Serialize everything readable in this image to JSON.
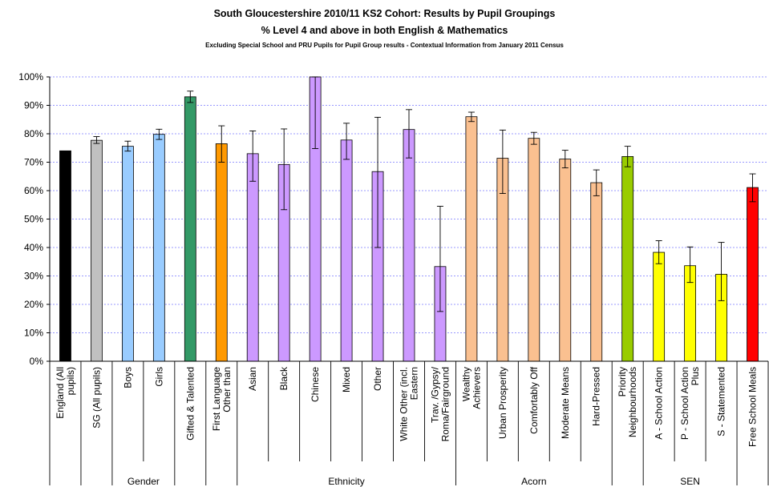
{
  "chart_data": {
    "type": "bar",
    "title": "South Gloucestershire 2010/11 KS2 Cohort: Results by Pupil Groupings",
    "subtitle": "% Level 4 and above in both English & Mathematics",
    "note": "Excluding Special School and PRU Pupils for Pupil Group results - Contextual Information from January 2011 Census",
    "ylim": [
      0,
      100
    ],
    "yticks": [
      "0%",
      "10%",
      "20%",
      "30%",
      "40%",
      "50%",
      "60%",
      "70%",
      "80%",
      "90%",
      "100%"
    ],
    "grid": true,
    "bars": [
      {
        "label": "England (All pupils)",
        "value": 74,
        "error": null,
        "color": "#000000"
      },
      {
        "label": "SG (All pupils)",
        "value": 77.7,
        "error": [
          76.6,
          79.0
        ],
        "color": "#c0c0c0"
      },
      {
        "label": "Boys",
        "value": 75.6,
        "error": [
          73.9,
          77.4
        ],
        "color": "#99ccff"
      },
      {
        "label": "Girls",
        "value": 79.8,
        "error": [
          78.0,
          81.6
        ],
        "color": "#99ccff"
      },
      {
        "label": "Gifted & Talented",
        "value": 93.0,
        "error": [
          91.0,
          95.0
        ],
        "color": "#339966"
      },
      {
        "label": "First Language Other than",
        "value": 76.5,
        "error": [
          70.0,
          82.8
        ],
        "color": "#ff9900"
      },
      {
        "label": "Asian",
        "value": 73.0,
        "error": [
          63.3,
          81.0
        ],
        "color": "#cc99ff"
      },
      {
        "label": "Black",
        "value": 69.2,
        "error": [
          53.3,
          81.7
        ],
        "color": "#cc99ff"
      },
      {
        "label": "Chinese",
        "value": 100,
        "error": [
          74.8,
          100
        ],
        "color": "#cc99ff"
      },
      {
        "label": "Mixed",
        "value": 77.8,
        "error": [
          71.0,
          83.7
        ],
        "color": "#cc99ff"
      },
      {
        "label": "Other",
        "value": 66.7,
        "error": [
          40.0,
          85.8
        ],
        "color": "#cc99ff"
      },
      {
        "label": "White Other (incl. Eastern",
        "value": 81.5,
        "error": [
          71.5,
          88.5
        ],
        "color": "#cc99ff"
      },
      {
        "label": "Trav. /Gypsy/ Roma/Fairground",
        "value": 33.3,
        "error": [
          17.5,
          54.5
        ],
        "color": "#cc99ff"
      },
      {
        "label": "Wealthy Achievers",
        "value": 86.0,
        "error": [
          84.3,
          87.6
        ],
        "color": "#fac090"
      },
      {
        "label": "Urban Prosperity",
        "value": 71.4,
        "error": [
          59.0,
          81.3
        ],
        "color": "#fac090"
      },
      {
        "label": "Comfortably Off",
        "value": 78.4,
        "error": [
          76.3,
          80.5
        ],
        "color": "#fac090"
      },
      {
        "label": "Moderate Means",
        "value": 71.1,
        "error": [
          68.0,
          74.2
        ],
        "color": "#fac090"
      },
      {
        "label": "Hard-Pressed",
        "value": 62.8,
        "error": [
          58.2,
          67.3
        ],
        "color": "#fac090"
      },
      {
        "label": "Priority Neighbourhoods",
        "value": 72.0,
        "error": [
          68.4,
          75.6
        ],
        "color": "#99cc00"
      },
      {
        "label": "A - School Action",
        "value": 38.3,
        "error": [
          34.3,
          42.4
        ],
        "color": "#ffff00"
      },
      {
        "label": "P - School Action Plus",
        "value": 33.6,
        "error": [
          27.7,
          40.2
        ],
        "color": "#ffff00"
      },
      {
        "label": "S - Statemented",
        "value": 30.6,
        "error": [
          21.3,
          41.8
        ],
        "color": "#ffff00"
      },
      {
        "label": "Free School Meals",
        "value": 61.1,
        "error": [
          56.1,
          65.9
        ],
        "color": "#ff0000"
      }
    ],
    "groups": [
      {
        "label": "Gender",
        "from": 2,
        "to": 3
      },
      {
        "label": "Ethnicity",
        "from": 6,
        "to": 12
      },
      {
        "label": "Acorn",
        "from": 13,
        "to": 17
      },
      {
        "label": "SEN",
        "from": 19,
        "to": 21
      }
    ],
    "wrapped_labels": [
      [
        "England (All",
        "pupils)"
      ],
      [
        "SG (All pupils)"
      ],
      [
        "Boys"
      ],
      [
        "Girls"
      ],
      [
        "Gifted & Talented"
      ],
      [
        "First Language",
        "Other than"
      ],
      [
        "Asian"
      ],
      [
        "Black"
      ],
      [
        "Chinese"
      ],
      [
        "Mixed"
      ],
      [
        "Other"
      ],
      [
        "White Other (incl.",
        "Eastern"
      ],
      [
        "Trav. /Gypsy/",
        "Roma/Fairground"
      ],
      [
        "Wealthy",
        "Achievers"
      ],
      [
        "Urban Prosperity"
      ],
      [
        "Comfortably Off"
      ],
      [
        "Moderate Means"
      ],
      [
        "Hard-Pressed"
      ],
      [
        "Priority",
        "Neighbourhoods"
      ],
      [
        "A - School Action"
      ],
      [
        "P - School Action",
        "Plus"
      ],
      [
        "S - Statemented"
      ],
      [
        "Free School Meals"
      ]
    ]
  }
}
